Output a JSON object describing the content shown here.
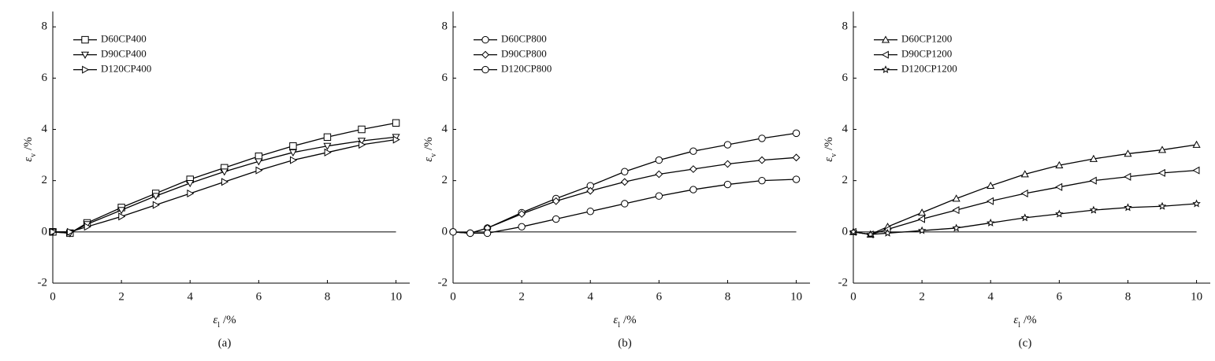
{
  "chart_data": [
    {
      "type": "line",
      "caption": "(a)",
      "xlabel": {
        "symbol": "ε",
        "subscript": "l",
        "unit": "/%"
      },
      "ylabel": {
        "symbol": "ε",
        "subscript": "v",
        "unit": "/%"
      },
      "xlim": [
        0,
        10.4
      ],
      "ylim": [
        -2,
        8.6
      ],
      "xticks": [
        0,
        2,
        4,
        6,
        8,
        10
      ],
      "yticks": [
        -2,
        0,
        2,
        4,
        6,
        8
      ],
      "legend": "upper left",
      "x": [
        0,
        0.5,
        1,
        2,
        3,
        4,
        5,
        6,
        7,
        8,
        9,
        10
      ],
      "series": [
        {
          "name": "D60CP400",
          "color": "#000000",
          "marker": "square",
          "values": [
            0,
            -0.05,
            0.35,
            0.95,
            1.5,
            2.05,
            2.5,
            2.95,
            3.35,
            3.7,
            4.0,
            4.25
          ]
        },
        {
          "name": "D90CP400",
          "color": "#000000",
          "marker": "triangle-down",
          "values": [
            0,
            -0.05,
            0.3,
            0.85,
            1.4,
            1.9,
            2.35,
            2.75,
            3.1,
            3.35,
            3.55,
            3.7
          ]
        },
        {
          "name": "D120CP400",
          "color": "#000000",
          "marker": "triangle-right",
          "values": [
            0,
            0,
            0.2,
            0.6,
            1.05,
            1.5,
            1.95,
            2.4,
            2.8,
            3.1,
            3.4,
            3.6
          ]
        }
      ]
    },
    {
      "type": "line",
      "caption": "(b)",
      "xlabel": {
        "symbol": "ε",
        "subscript": "l",
        "unit": "/%"
      },
      "ylabel": {
        "symbol": "ε",
        "subscript": "v",
        "unit": "/%"
      },
      "xlim": [
        0,
        10.4
      ],
      "ylim": [
        -2,
        8.6
      ],
      "xticks": [
        0,
        2,
        4,
        6,
        8,
        10
      ],
      "yticks": [
        -2,
        0,
        2,
        4,
        6,
        8
      ],
      "legend": "upper left",
      "x": [
        0,
        0.5,
        1,
        2,
        3,
        4,
        5,
        6,
        7,
        8,
        9,
        10
      ],
      "series": [
        {
          "name": "D60CP800",
          "color": "#000000",
          "marker": "circle",
          "values": [
            0,
            -0.05,
            0.15,
            0.75,
            1.3,
            1.8,
            2.35,
            2.8,
            3.15,
            3.4,
            3.65,
            3.85
          ]
        },
        {
          "name": "D90CP800",
          "color": "#000000",
          "marker": "diamond",
          "values": [
            0,
            -0.05,
            0.15,
            0.7,
            1.2,
            1.6,
            1.95,
            2.25,
            2.45,
            2.65,
            2.8,
            2.9
          ]
        },
        {
          "name": "D120CP800",
          "color": "#000000",
          "marker": "circle",
          "values": [
            0,
            -0.05,
            -0.05,
            0.2,
            0.5,
            0.8,
            1.1,
            1.4,
            1.65,
            1.85,
            2.0,
            2.05
          ]
        }
      ]
    },
    {
      "type": "line",
      "caption": "(c)",
      "xlabel": {
        "symbol": "ε",
        "subscript": "l",
        "unit": "/%"
      },
      "ylabel": {
        "symbol": "ε",
        "subscript": "v",
        "unit": "/%"
      },
      "xlim": [
        0,
        10.4
      ],
      "ylim": [
        -2,
        8.6
      ],
      "xticks": [
        0,
        2,
        4,
        6,
        8,
        10
      ],
      "yticks": [
        -2,
        0,
        2,
        4,
        6,
        8
      ],
      "legend": "upper left",
      "x": [
        0,
        0.5,
        1,
        2,
        3,
        4,
        5,
        6,
        7,
        8,
        9,
        10
      ],
      "series": [
        {
          "name": "D60CP1200",
          "color": "#000000",
          "marker": "triangle-up",
          "values": [
            0,
            -0.1,
            0.2,
            0.75,
            1.3,
            1.8,
            2.25,
            2.6,
            2.85,
            3.05,
            3.2,
            3.4
          ]
        },
        {
          "name": "D90CP1200",
          "color": "#000000",
          "marker": "triangle-left",
          "values": [
            0,
            -0.1,
            0.1,
            0.5,
            0.85,
            1.2,
            1.5,
            1.75,
            2.0,
            2.15,
            2.3,
            2.4
          ]
        },
        {
          "name": "D120CP1200",
          "color": "#000000",
          "marker": "star",
          "values": [
            0,
            -0.1,
            -0.05,
            0.05,
            0.15,
            0.35,
            0.55,
            0.7,
            0.85,
            0.95,
            1.0,
            1.1
          ]
        }
      ]
    }
  ]
}
